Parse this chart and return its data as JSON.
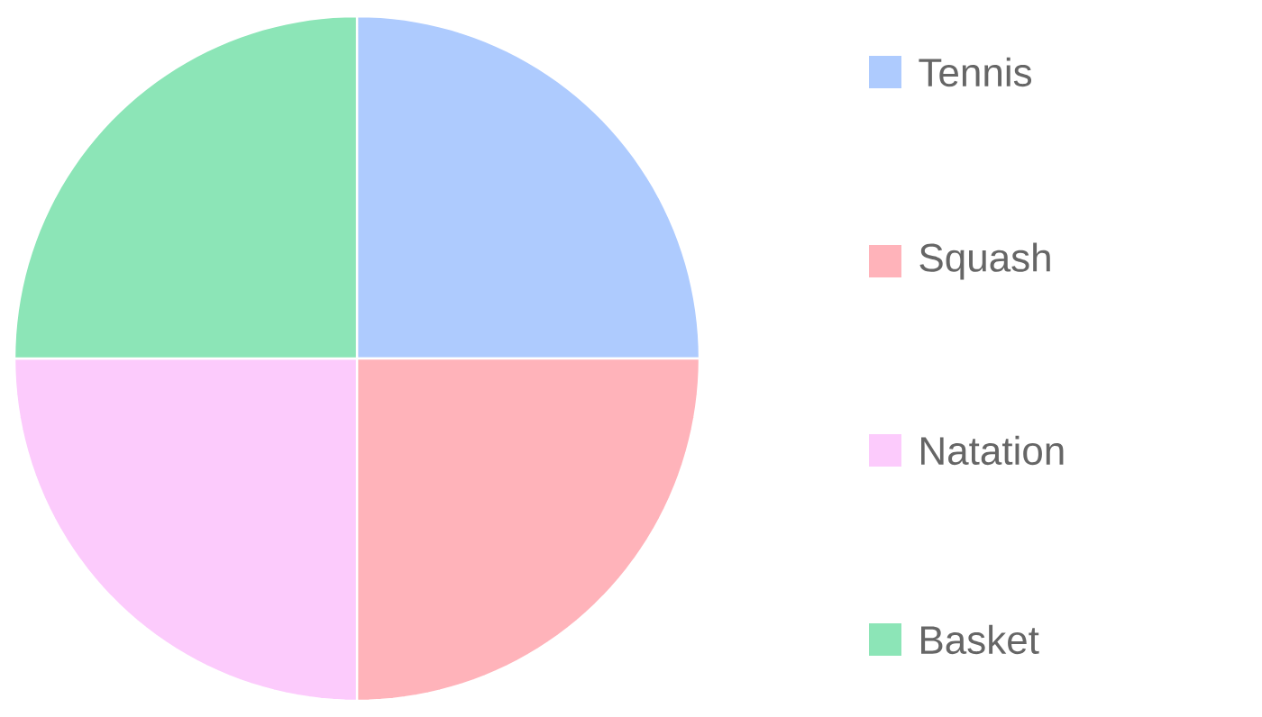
{
  "chart_data": {
    "type": "pie",
    "categories": [
      "Tennis",
      "Squash",
      "Natation",
      "Basket"
    ],
    "values": [
      25,
      25,
      25,
      25
    ],
    "colors": [
      "#aecbfe",
      "#ffb3ba",
      "#fccbfc",
      "#8ce5b7"
    ],
    "legend": "right"
  }
}
